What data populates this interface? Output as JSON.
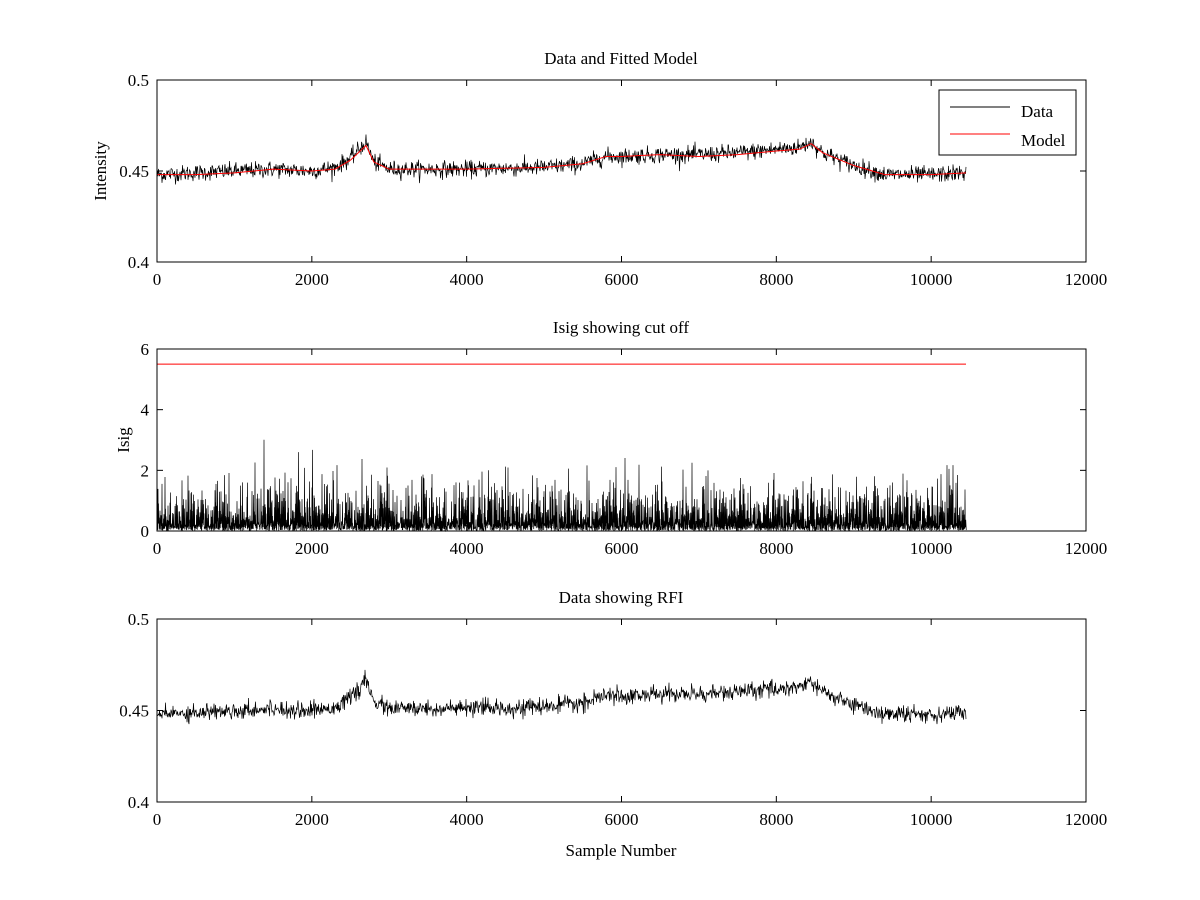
{
  "colors": {
    "data": "#000000",
    "model": "#ff0000",
    "axes": "#000000",
    "background": "#ffffff"
  },
  "chart_data": [
    {
      "type": "line",
      "title": "Data and Fitted Model",
      "xlabel": "",
      "ylabel": "Intensity",
      "xlim": [
        0,
        12000
      ],
      "ylim": [
        0.4,
        0.5
      ],
      "xticks": [
        0,
        2000,
        4000,
        6000,
        8000,
        10000,
        12000
      ],
      "yticks": [
        0.4,
        0.45,
        0.5
      ],
      "ytick_labels": [
        "0.4",
        "0.45",
        "0.5"
      ],
      "legend": {
        "position": "top-right",
        "entries": [
          "Data",
          "Model"
        ]
      },
      "series": [
        {
          "name": "Data",
          "color": "#000000",
          "noisy": true,
          "noise_halfwidth": 0.005,
          "x": [
            0,
            500,
            1000,
            1500,
            2000,
            2300,
            2500,
            2700,
            2800,
            3000,
            4000,
            5000,
            5500,
            5800,
            6000,
            6500,
            7000,
            7500,
            8000,
            8300,
            8450,
            8600,
            9000,
            9400,
            10000,
            10450
          ],
          "y": [
            0.448,
            0.449,
            0.45,
            0.451,
            0.45,
            0.452,
            0.457,
            0.466,
            0.455,
            0.451,
            0.451,
            0.452,
            0.454,
            0.458,
            0.458,
            0.459,
            0.459,
            0.46,
            0.462,
            0.463,
            0.466,
            0.46,
            0.453,
            0.448,
            0.448,
            0.449
          ]
        },
        {
          "name": "Model",
          "color": "#ff0000",
          "noisy": false,
          "x": [
            0,
            500,
            1000,
            1500,
            2000,
            2300,
            2500,
            2700,
            2800,
            3000,
            4000,
            5000,
            5500,
            5800,
            6000,
            6500,
            7000,
            7500,
            8000,
            8300,
            8450,
            8600,
            9000,
            9400,
            10000,
            10450
          ],
          "y": [
            0.448,
            0.448,
            0.449,
            0.451,
            0.45,
            0.451,
            0.456,
            0.464,
            0.455,
            0.451,
            0.451,
            0.452,
            0.454,
            0.458,
            0.458,
            0.459,
            0.458,
            0.459,
            0.461,
            0.462,
            0.465,
            0.46,
            0.453,
            0.448,
            0.448,
            0.449
          ]
        }
      ]
    },
    {
      "type": "line",
      "title": "Isig showing cut off",
      "xlabel": "",
      "ylabel": "Isig",
      "xlim": [
        0,
        12000
      ],
      "ylim": [
        0,
        6
      ],
      "xticks": [
        0,
        2000,
        4000,
        6000,
        8000,
        10000,
        12000
      ],
      "yticks": [
        0,
        2,
        4,
        6
      ],
      "ytick_labels": [
        "0",
        "2",
        "4",
        "6"
      ],
      "series": [
        {
          "color": "#000000",
          "noisy": true,
          "noise_type": "abs_gaussian",
          "x_start": 0,
          "x_end": 10450,
          "typical_max": 3.6
        },
        {
          "color": "#ff0000",
          "noisy": false,
          "x": [
            0,
            10450
          ],
          "y": [
            5.5,
            5.5
          ]
        }
      ]
    },
    {
      "type": "line",
      "title": "Data showing RFI",
      "xlabel": "Sample Number",
      "ylabel": "",
      "xlim": [
        0,
        12000
      ],
      "ylim": [
        0.4,
        0.5
      ],
      "xticks": [
        0,
        2000,
        4000,
        6000,
        8000,
        10000,
        12000
      ],
      "yticks": [
        0.4,
        0.45,
        0.5
      ],
      "ytick_labels": [
        "0.4",
        "0.45",
        "0.5"
      ],
      "series": [
        {
          "color": "#000000",
          "noisy": true,
          "noise_halfwidth": 0.005,
          "x": [
            0,
            500,
            1000,
            1500,
            2000,
            2300,
            2500,
            2700,
            2800,
            3000,
            4000,
            5000,
            5500,
            5800,
            6000,
            6500,
            7000,
            7500,
            8000,
            8300,
            8450,
            8600,
            9000,
            9400,
            10000,
            10450
          ],
          "y": [
            0.448,
            0.449,
            0.45,
            0.451,
            0.45,
            0.452,
            0.457,
            0.466,
            0.455,
            0.451,
            0.451,
            0.452,
            0.454,
            0.458,
            0.458,
            0.459,
            0.459,
            0.46,
            0.462,
            0.463,
            0.466,
            0.46,
            0.453,
            0.448,
            0.448,
            0.449
          ]
        }
      ]
    }
  ]
}
